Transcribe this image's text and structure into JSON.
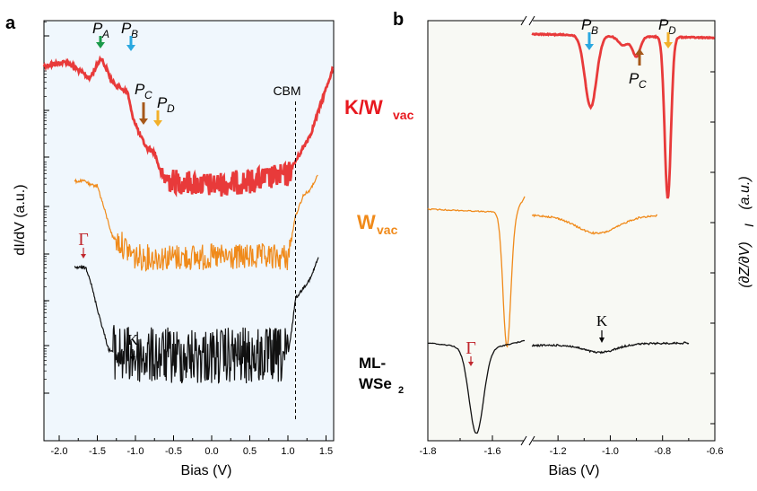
{
  "chart_data": [
    {
      "type": "line",
      "panel": "a",
      "xlabel": "Bias (V)",
      "ylabel": "dI/dV  (a.u.)",
      "x_ticks": [
        -2.0,
        -1.5,
        -1.0,
        -0.5,
        0.0,
        0.5,
        1.0,
        1.5
      ],
      "xlim": [
        -2.2,
        1.6
      ],
      "ylog": true,
      "background": "#f0f7fd",
      "series": [
        {
          "name": "K/Wvac",
          "color": "#e83a3a",
          "x": [
            -2.2,
            -1.9,
            -1.6,
            -1.45,
            -1.3,
            -1.1,
            -1.05,
            -0.95,
            -0.85,
            -0.75,
            -0.65,
            -0.5,
            0.0,
            0.5,
            1.0,
            1.3,
            1.6
          ],
          "y": [
            0.22,
            0.2,
            0.28,
            0.18,
            0.3,
            0.35,
            0.45,
            0.55,
            0.62,
            0.64,
            0.76,
            0.78,
            0.8,
            0.78,
            0.75,
            0.55,
            0.22
          ]
        },
        {
          "name": "Wvac",
          "color": "#f08a1a",
          "x": [
            -1.8,
            -1.65,
            -1.6,
            -1.5,
            -1.3,
            -1.2,
            -1.0,
            0.0,
            1.0,
            1.05,
            1.1,
            1.2,
            1.3,
            1.35,
            1.4
          ],
          "y": [
            0.78,
            0.78,
            0.8,
            0.8,
            1.05,
            1.08,
            1.15,
            1.15,
            1.15,
            1.05,
            0.95,
            0.85,
            0.82,
            0.78,
            0.75
          ]
        },
        {
          "name": "ML-WSe2",
          "color": "#111111",
          "x": [
            -1.8,
            -1.7,
            -1.65,
            -1.6,
            -1.5,
            -1.35,
            -1.2,
            -1.0,
            0.0,
            1.0,
            1.05,
            1.1,
            1.2,
            1.3,
            1.4
          ],
          "y": [
            1.2,
            1.2,
            1.2,
            1.25,
            1.4,
            1.6,
            1.62,
            1.63,
            1.63,
            1.63,
            1.5,
            1.35,
            1.3,
            1.25,
            1.15
          ]
        }
      ],
      "annotations": {
        "pa": {
          "x": -1.45,
          "text": "P",
          "sub": "A",
          "color": "#1a9a4a"
        },
        "pb": {
          "x": -1.05,
          "text": "P",
          "sub": "B",
          "color": "#2aa8e0"
        },
        "pc": {
          "x": -0.85,
          "text": "P",
          "sub": "C",
          "color": "#a6581a"
        },
        "pd": {
          "x": -0.72,
          "text": "P",
          "sub": "D",
          "color": "#f2b02a"
        },
        "cbm": {
          "x": 1.1,
          "text": "CBM"
        },
        "gamma": {
          "x": -1.65,
          "text": "Γ",
          "color": "#c0272d"
        },
        "k": {
          "x": -1.0,
          "text": "K"
        }
      }
    },
    {
      "type": "line",
      "panel": "b",
      "xlabel": "Bias (V)",
      "ylabel": "(∂Z/∂V)I  (a.u.)",
      "x_ticks": [
        -1.8,
        -1.6,
        -1.2,
        -1.0,
        -0.8,
        -0.6
      ],
      "axis_break": [
        -1.5,
        -1.3
      ],
      "background": "#f8f9f4",
      "series": [
        {
          "name": "K/Wvac",
          "color": "#e83a3a"
        },
        {
          "name": "Wvac",
          "color": "#f08a1a"
        },
        {
          "name": "ML-WSe2",
          "color": "#111111"
        }
      ],
      "annotations": {
        "pb": {
          "x": -1.07,
          "text": "P",
          "sub": "B",
          "color": "#2aa8e0"
        },
        "pc": {
          "x": -0.9,
          "text": "P",
          "sub": "C",
          "color": "#a6581a"
        },
        "pd": {
          "x": -0.78,
          "text": "P",
          "sub": "D",
          "color": "#f2b02a"
        },
        "gamma": {
          "x": -1.65,
          "text": "Γ",
          "color": "#c0272d"
        },
        "k": {
          "x": -1.04,
          "text": "K"
        }
      }
    }
  ],
  "labels": {
    "panel_a": "a",
    "panel_b": "b",
    "kw_main": "K/W",
    "kw_sub": "vac",
    "w_main": "W",
    "w_sub": "vac",
    "ml_line1": "ML-",
    "ml_line2": "WSe",
    "ml_sub": "2",
    "xlabel_a": "Bias (V)",
    "xlabel_b": "Bias (V)",
    "ylabel_a": "dI/dV  (a.u.)",
    "ylabel_b": "(∂Z/∂V)",
    "ylabel_b_sub": "I",
    "ylabel_b_unit": "(a.u.)",
    "colors": {
      "red": "#e83a3a",
      "orange": "#f08a1a",
      "black": "#111111"
    }
  }
}
